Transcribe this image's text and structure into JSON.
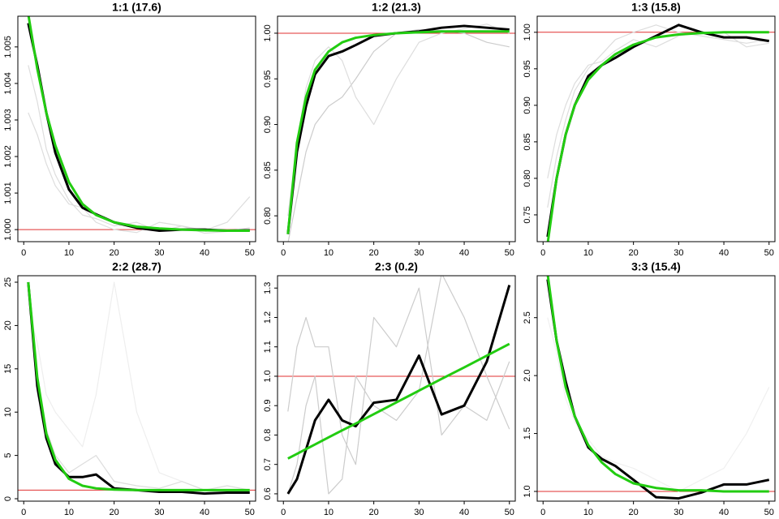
{
  "chart_data": [
    {
      "type": "line",
      "title": "1:1 (17.6)",
      "x": [
        1,
        3,
        5,
        7,
        10,
        13,
        16,
        20,
        25,
        30,
        35,
        40,
        45,
        50
      ],
      "xlim": [
        -1.3,
        51.3
      ],
      "xticks": [
        0,
        10,
        20,
        30,
        40,
        50
      ],
      "ylim": [
        0.99967,
        1.00584
      ],
      "yticks": [
        {
          "value": 1.0,
          "label": "1.000"
        },
        {
          "value": 1.001,
          "label": "1.001"
        },
        {
          "value": 1.002,
          "label": "1.002"
        },
        {
          "value": 1.003,
          "label": "1.003"
        },
        {
          "value": 1.004,
          "label": "1.004"
        },
        {
          "value": 1.005,
          "label": "1.005"
        }
      ],
      "hline": 1.0,
      "hline_color": "#e03030",
      "series": [
        {
          "color": "#dddddd",
          "width": 1.2,
          "values": [
            1.0045,
            1.0035,
            1.0022,
            1.0015,
            1.0008,
            1.0004,
            1.0003,
            1.0001,
            1.0002,
            0.99995,
            1.0001,
            0.99998,
            1.0002,
            1.0009
          ]
        },
        {
          "color": "#dddddd",
          "width": 1.2,
          "values": [
            1.0032,
            1.0026,
            1.0018,
            1.0012,
            1.0007,
            1.0006,
            1.0002,
            1.0,
            0.99992,
            1.0002,
            1.0001,
            0.9999,
            0.99995,
            1.00005
          ]
        },
        {
          "color": "#000000",
          "width": 3,
          "values": [
            1.00565,
            1.0045,
            1.0032,
            1.0021,
            1.0011,
            1.0006,
            1.00042,
            1.0002,
            1.00005,
            0.99997,
            1.0,
            1.0,
            0.99997,
            0.99998
          ]
        },
        {
          "color": "#22cc11",
          "width": 3,
          "values": [
            1.0059,
            1.0044,
            1.0032,
            1.0023,
            1.0013,
            1.0007,
            1.0004,
            1.0002,
            1.00008,
            1.00003,
            1.0,
            0.99998,
            0.99997,
            0.99997
          ]
        }
      ]
    },
    {
      "type": "line",
      "title": "1:2 (21.3)",
      "x": [
        1,
        3,
        5,
        7,
        10,
        13,
        16,
        20,
        25,
        30,
        35,
        40,
        45,
        50
      ],
      "xlim": [
        -1.3,
        51.3
      ],
      "xticks": [
        0,
        10,
        20,
        30,
        40,
        50
      ],
      "ylim": [
        0.7717,
        1.0186
      ],
      "yticks": [
        {
          "value": 0.8,
          "label": "0.80"
        },
        {
          "value": 0.85,
          "label": "0.85"
        },
        {
          "value": 0.9,
          "label": "0.90"
        },
        {
          "value": 0.95,
          "label": "0.95"
        },
        {
          "value": 1.0,
          "label": "1.00"
        }
      ],
      "hline": 1.0,
      "hline_color": "#e03030",
      "series": [
        {
          "color": "#cccccc",
          "width": 1.2,
          "values": [
            0.77,
            0.82,
            0.87,
            0.9,
            0.92,
            0.93,
            0.95,
            0.98,
            1.0,
            1.004,
            1.003,
            1.0,
            0.99,
            0.985
          ]
        },
        {
          "color": "#dddddd",
          "width": 1.2,
          "values": [
            0.8,
            0.88,
            0.94,
            0.97,
            0.985,
            0.97,
            0.93,
            0.9,
            0.95,
            0.99,
            1.0,
            1.005,
            1.01,
            1.0
          ]
        },
        {
          "color": "#000000",
          "width": 3,
          "values": [
            0.78,
            0.87,
            0.92,
            0.955,
            0.975,
            0.98,
            0.987,
            0.997,
            1.0,
            1.002,
            1.006,
            1.008,
            1.006,
            1.004
          ]
        },
        {
          "color": "#22cc11",
          "width": 3,
          "values": [
            0.78,
            0.88,
            0.93,
            0.96,
            0.98,
            0.99,
            0.995,
            0.998,
            1.0,
            1.001,
            1.002,
            1.002,
            1.002,
            1.002
          ]
        }
      ]
    },
    {
      "type": "line",
      "title": "1:3 (15.8)",
      "x": [
        1,
        3,
        5,
        7,
        10,
        13,
        16,
        20,
        25,
        30,
        35,
        40,
        45,
        50
      ],
      "xlim": [
        -1.3,
        51.3
      ],
      "xticks": [
        0,
        10,
        20,
        30,
        40,
        50
      ],
      "ylim": [
        0.7133,
        1.022
      ],
      "yticks": [
        {
          "value": 0.75,
          "label": "0.75"
        },
        {
          "value": 0.8,
          "label": "0.80"
        },
        {
          "value": 0.85,
          "label": "0.85"
        },
        {
          "value": 0.9,
          "label": "0.90"
        },
        {
          "value": 0.95,
          "label": "0.95"
        },
        {
          "value": 1.0,
          "label": "1.00"
        }
      ],
      "hline": 1.0,
      "hline_color": "#e03030",
      "series": [
        {
          "color": "#dddddd",
          "width": 1.2,
          "values": [
            0.76,
            0.83,
            0.88,
            0.92,
            0.95,
            0.97,
            0.99,
            1.0,
            1.01,
            1.0,
            0.995,
            0.99,
            0.985,
            0.99
          ]
        },
        {
          "color": "#dddddd",
          "width": 1.2,
          "values": [
            0.8,
            0.86,
            0.9,
            0.93,
            0.955,
            0.96,
            0.975,
            0.99,
            0.98,
            0.995,
            1.0,
            1.0,
            0.98,
            0.985
          ]
        },
        {
          "color": "#000000",
          "width": 3,
          "values": [
            0.72,
            0.8,
            0.86,
            0.9,
            0.94,
            0.955,
            0.965,
            0.98,
            0.995,
            1.01,
            1.0,
            0.993,
            0.993,
            0.988
          ]
        },
        {
          "color": "#22cc11",
          "width": 3,
          "values": [
            0.71,
            0.8,
            0.86,
            0.9,
            0.935,
            0.955,
            0.97,
            0.983,
            0.993,
            0.997,
            0.999,
            1.0,
            1.0,
            1.0
          ]
        }
      ]
    },
    {
      "type": "line",
      "title": "2:2 (28.7)",
      "x": [
        1,
        3,
        5,
        7,
        10,
        13,
        16,
        20,
        25,
        30,
        35,
        40,
        45,
        50
      ],
      "xlim": [
        -1.3,
        51.3
      ],
      "xticks": [
        0,
        10,
        20,
        30,
        40,
        50
      ],
      "ylim": [
        -0.28,
        25.75
      ],
      "yticks": [
        0,
        5,
        10,
        15,
        20,
        25
      ],
      "hline": 1,
      "hline_color": "#e03030",
      "series": [
        {
          "color": "#eeeeee",
          "width": 1.2,
          "values": [
            22,
            18,
            12,
            10,
            8,
            6,
            12,
            25,
            10,
            3,
            2,
            1,
            1,
            1
          ]
        },
        {
          "color": "#dddddd",
          "width": 1.2,
          "values": [
            24,
            12,
            8,
            5,
            3,
            4,
            5,
            2,
            1.5,
            1.2,
            2,
            1,
            1.5,
            1
          ]
        },
        {
          "color": "#000000",
          "width": 3,
          "values": [
            25,
            13,
            7,
            4,
            2.5,
            2.5,
            2.8,
            1.2,
            1.0,
            0.8,
            0.8,
            0.6,
            0.7,
            0.7
          ]
        },
        {
          "color": "#22cc11",
          "width": 3,
          "values": [
            25,
            14,
            7.5,
            4.5,
            2.3,
            1.5,
            1.2,
            1.05,
            1.0,
            1.0,
            1.0,
            1.0,
            1.0,
            1.0
          ]
        }
      ]
    },
    {
      "type": "line",
      "title": "2:3 (0.2)",
      "x": [
        1,
        3,
        5,
        7,
        10,
        13,
        16,
        20,
        25,
        30,
        35,
        40,
        45,
        50
      ],
      "xlim": [
        -1.3,
        51.3
      ],
      "xticks": [
        0,
        10,
        20,
        30,
        40,
        50
      ],
      "ylim": [
        0.575,
        1.342
      ],
      "yticks": [
        {
          "value": 0.6,
          "label": "0.6"
        },
        {
          "value": 0.7,
          "label": "0.7"
        },
        {
          "value": 0.8,
          "label": "0.8"
        },
        {
          "value": 0.9,
          "label": "0.9"
        },
        {
          "value": 1.0,
          "label": "1.0"
        },
        {
          "value": 1.1,
          "label": "1.1"
        },
        {
          "value": 1.2,
          "label": "1.2"
        },
        {
          "value": 1.3,
          "label": "1.3"
        }
      ],
      "hline": 1,
      "hline_color": "#e03030",
      "series": [
        {
          "color": "#cccccc",
          "width": 1.2,
          "values": [
            0.88,
            1.1,
            1.2,
            1.1,
            1.1,
            0.8,
            0.7,
            1.2,
            1.1,
            1.3,
            0.8,
            0.9,
            0.85,
            1.05
          ]
        },
        {
          "color": "#cccccc",
          "width": 1.2,
          "values": [
            0.6,
            0.7,
            0.9,
            1.0,
            0.6,
            0.65,
            1.0,
            0.9,
            0.85,
            0.95,
            1.35,
            1.2,
            1.0,
            0.82
          ]
        },
        {
          "color": "#000000",
          "width": 3,
          "values": [
            0.6,
            0.65,
            0.75,
            0.85,
            0.92,
            0.85,
            0.83,
            0.91,
            0.92,
            1.07,
            0.87,
            0.9,
            1.05,
            1.31
          ]
        },
        {
          "color": "#22cc11",
          "width": 3,
          "values": [
            0.72,
            0.736,
            0.752,
            0.768,
            0.792,
            0.816,
            0.839,
            0.871,
            0.911,
            0.951,
            0.991,
            1.03,
            1.07,
            1.11
          ]
        }
      ]
    },
    {
      "type": "line",
      "title": "3:3 (15.4)",
      "x": [
        1,
        3,
        5,
        7,
        10,
        13,
        16,
        20,
        25,
        30,
        35,
        40,
        45,
        50
      ],
      "xlim": [
        -1.3,
        51.3
      ],
      "xticks": [
        0,
        10,
        20,
        30,
        40,
        50
      ],
      "ylim": [
        0.916,
        2.862
      ],
      "yticks": [
        {
          "value": 1.0,
          "label": "1.0"
        },
        1.5,
        {
          "value": 2.0,
          "label": "2.0"
        },
        2.5
      ],
      "hline": 1,
      "hline_color": "#e03030",
      "series": [
        {
          "color": "#f0f0f0",
          "width": 1.2,
          "values": [
            2.5,
            2.2,
            1.8,
            1.6,
            1.45,
            1.3,
            1.25,
            1.2,
            1.1,
            1.0,
            1.1,
            1.2,
            1.5,
            1.9
          ]
        },
        {
          "color": "#000000",
          "width": 3,
          "values": [
            2.83,
            2.3,
            1.95,
            1.65,
            1.38,
            1.28,
            1.22,
            1.1,
            0.95,
            0.94,
            0.99,
            1.06,
            1.06,
            1.1
          ]
        },
        {
          "color": "#22cc11",
          "width": 3,
          "values": [
            2.88,
            2.3,
            1.9,
            1.65,
            1.4,
            1.25,
            1.15,
            1.07,
            1.03,
            1.01,
            1.01,
            1.0,
            1.0,
            1.0
          ]
        }
      ]
    }
  ]
}
